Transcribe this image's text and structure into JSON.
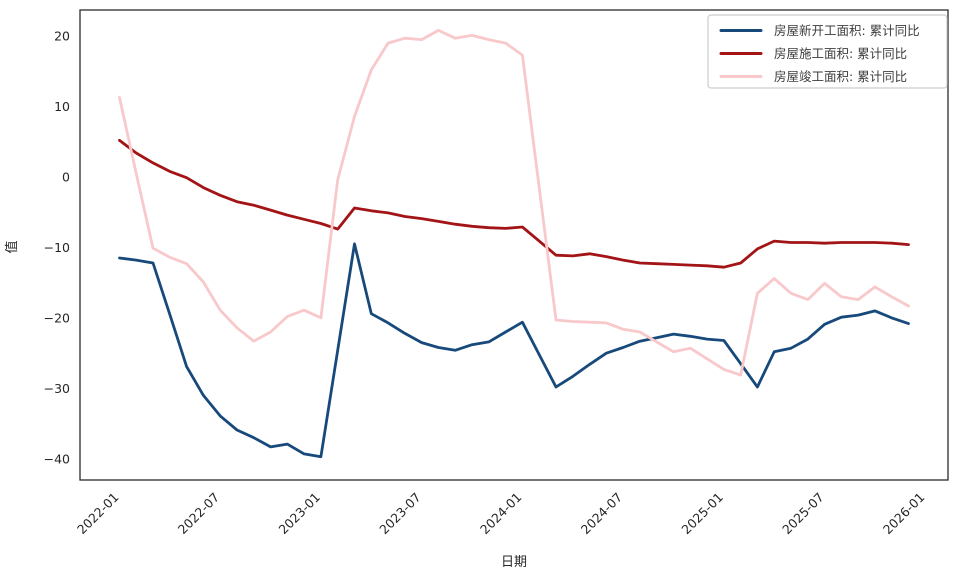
{
  "chart_data": {
    "type": "line",
    "title": "",
    "xlabel": "日期",
    "ylabel": "值",
    "grid": false,
    "legend_position": "upper right",
    "x_tick_labels": [
      "2022-01",
      "2022-07",
      "2023-01",
      "2023-07",
      "2024-01",
      "2024-07",
      "2025-01",
      "2025-07",
      "2026-01"
    ],
    "y_ticks": [
      20,
      10,
      0,
      -10,
      -20,
      -30,
      -40
    ],
    "ylim": [
      -43.0,
      23.7
    ],
    "xlim_months_around_first_tick": [
      -2.35,
      49.35
    ],
    "x": [
      "2022-01",
      "2022-02",
      "2022-03",
      "2022-04",
      "2022-05",
      "2022-06",
      "2022-07",
      "2022-08",
      "2022-09",
      "2022-10",
      "2022-11",
      "2022-12",
      "2023-01",
      "2023-02",
      "2023-03",
      "2023-04",
      "2023-05",
      "2023-06",
      "2023-07",
      "2023-08",
      "2023-09",
      "2023-10",
      "2023-11",
      "2023-12",
      "2024-01",
      "2024-02",
      "2024-03",
      "2024-04",
      "2024-05",
      "2024-06",
      "2024-07",
      "2024-08",
      "2024-09",
      "2024-10",
      "2024-11",
      "2024-12",
      "2025-01",
      "2025-02",
      "2025-03",
      "2025-04",
      "2025-05",
      "2025-06",
      "2025-07",
      "2025-08",
      "2025-09",
      "2025-10",
      "2025-11",
      "2025-12"
    ],
    "series": [
      {
        "name": "房屋新开工面积: 累计同比",
        "color": "#17497b",
        "values": [
          -11.5,
          -11.8,
          -12.2,
          -19.5,
          -26.9,
          -31.0,
          -33.9,
          -35.9,
          -37.0,
          -38.3,
          -37.9,
          -39.3,
          -39.7,
          -24.6,
          -9.5,
          -19.4,
          -20.7,
          -22.2,
          -23.5,
          -24.2,
          -24.6,
          -23.8,
          -23.4,
          -22.0,
          -20.6,
          -25.2,
          -29.8,
          -28.3,
          -26.6,
          -25.0,
          -24.2,
          -23.3,
          -22.8,
          -22.3,
          -22.6,
          -23.0,
          -23.2,
          -26.5,
          -29.8,
          -24.8,
          -24.3,
          -23.0,
          -20.9,
          -19.9,
          -19.6,
          -19.0,
          -20.0,
          -20.8
        ]
      },
      {
        "name": "房屋施工面积: 累计同比",
        "color": "#a31416",
        "values": [
          5.2,
          3.4,
          2.0,
          0.8,
          -0.1,
          -1.5,
          -2.6,
          -3.5,
          -4.0,
          -4.7,
          -5.4,
          -6.0,
          -6.6,
          -7.4,
          -4.4,
          -4.8,
          -5.1,
          -5.6,
          -5.9,
          -6.3,
          -6.7,
          -7.0,
          -7.2,
          -7.3,
          -7.1,
          -9.1,
          -11.1,
          -11.2,
          -10.9,
          -11.3,
          -11.8,
          -12.2,
          -12.3,
          -12.4,
          -12.5,
          -12.6,
          -12.8,
          -12.2,
          -10.2,
          -9.1,
          -9.3,
          -9.3,
          -9.4,
          -9.3,
          -9.3,
          -9.3,
          -9.4,
          -9.6
        ]
      },
      {
        "name": "房屋竣工面积: 累计同比",
        "color": "#f8c8ca",
        "values": [
          11.3,
          0.5,
          -10.1,
          -11.4,
          -12.3,
          -14.9,
          -18.9,
          -21.4,
          -23.3,
          -22.0,
          -19.8,
          -18.9,
          -20.0,
          -0.4,
          8.6,
          15.2,
          19.0,
          19.7,
          19.5,
          20.8,
          19.7,
          20.1,
          19.5,
          19.0,
          17.3,
          -1.5,
          -20.3,
          -20.5,
          -20.6,
          -20.7,
          -21.6,
          -22.0,
          -23.4,
          -24.8,
          -24.3,
          -25.8,
          -27.3,
          -28.1,
          -16.5,
          -14.4,
          -16.5,
          -17.4,
          -15.1,
          -17.0,
          -17.4,
          -15.6,
          -17.0,
          -18.3
        ]
      }
    ],
    "style": {
      "spine_color": "#2b2b2b",
      "tick_label_color": "#262626",
      "legend_border_color": "#cccccc",
      "legend_text_color": "#3d3d3d"
    }
  }
}
